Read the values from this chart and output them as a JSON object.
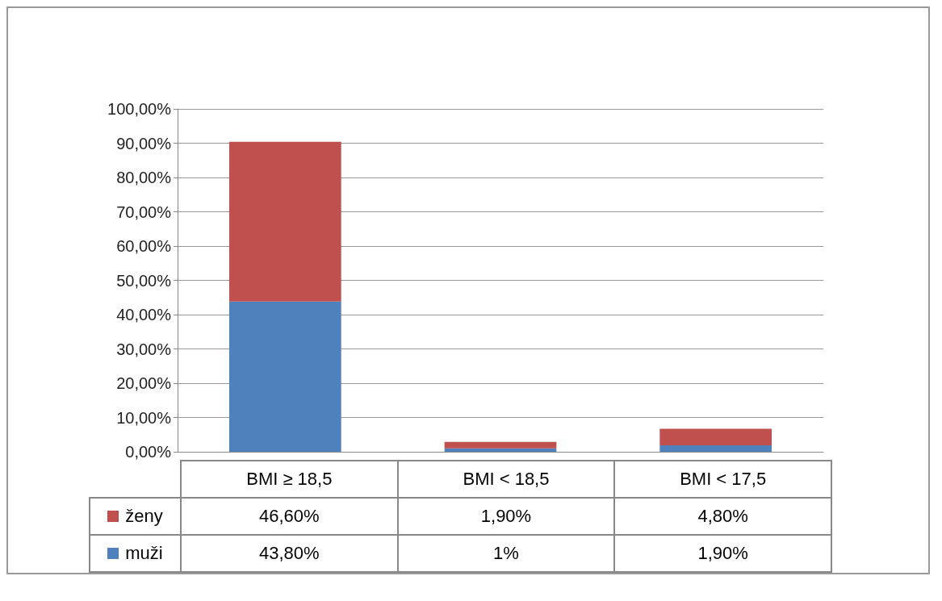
{
  "chart_data": {
    "type": "bar",
    "stacked": true,
    "categories": [
      "BMI ≥ 18,5",
      "BMI < 18,5",
      "BMI < 17,5"
    ],
    "series": [
      {
        "name": "muži",
        "color": "#4f81bd",
        "values": [
          43.8,
          1,
          1.9
        ],
        "value_labels": [
          "43,80%",
          "1%",
          "1,90%"
        ]
      },
      {
        "name": "ženy",
        "color": "#c0504d",
        "values": [
          46.6,
          1.9,
          4.8
        ],
        "value_labels": [
          "46,60%",
          "1,90%",
          "4,80%"
        ]
      }
    ],
    "ylim": [
      0,
      100
    ],
    "yticks": [
      {
        "value": 0,
        "label": "0,00%"
      },
      {
        "value": 10,
        "label": "10,00%"
      },
      {
        "value": 20,
        "label": "20,00%"
      },
      {
        "value": 30,
        "label": "30,00%"
      },
      {
        "value": 40,
        "label": "40,00%"
      },
      {
        "value": 50,
        "label": "50,00%"
      },
      {
        "value": 60,
        "label": "60,00%"
      },
      {
        "value": 70,
        "label": "70,00%"
      },
      {
        "value": 80,
        "label": "80,00%"
      },
      {
        "value": 90,
        "label": "90,00%"
      },
      {
        "value": 100,
        "label": "100,00%"
      }
    ],
    "grid": "y",
    "legend": "bottom"
  }
}
